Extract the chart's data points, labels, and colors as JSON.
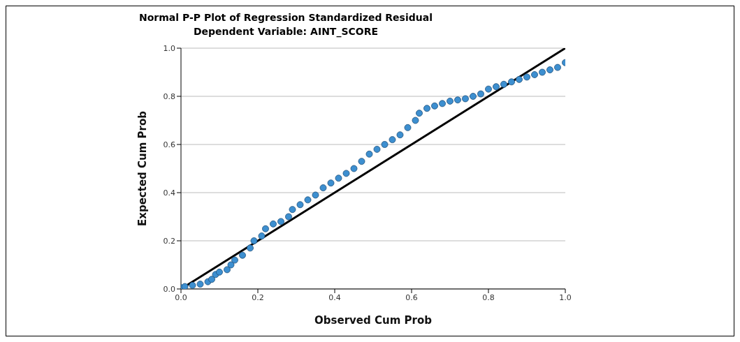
{
  "chart_data": {
    "type": "scatter",
    "title": "Normal P-P Plot of Regression Standardized Residual",
    "subtitle": "Dependent Variable: AINT_SCORE",
    "xlabel": "Observed Cum Prob",
    "ylabel": "Expected Cum Prob",
    "xlim": [
      0,
      1
    ],
    "ylim": [
      0,
      1
    ],
    "xticks": [
      {
        "value": 0,
        "label": "0.0"
      },
      {
        "value": 0.2,
        "label": "0.2"
      },
      {
        "value": 0.4,
        "label": "0.4"
      },
      {
        "value": 0.6,
        "label": "0.6"
      },
      {
        "value": 0.8,
        "label": "0.8"
      },
      {
        "value": 1,
        "label": "1.0"
      }
    ],
    "yticks": [
      {
        "value": 0,
        "label": "0.0"
      },
      {
        "value": 0.2,
        "label": "0.2"
      },
      {
        "value": 0.4,
        "label": "0.4"
      },
      {
        "value": 0.6,
        "label": "0.6"
      },
      {
        "value": 0.8,
        "label": "0.8"
      },
      {
        "value": 1,
        "label": "1.0"
      }
    ],
    "grid": "y",
    "series": [
      {
        "marker": "circle",
        "color": "#3d8fd0",
        "x": [
          0,
          0.01,
          0.03,
          0.05,
          0.07,
          0.08,
          0.09,
          0.1,
          0.12,
          0.13,
          0.14,
          0.16,
          0.18,
          0.19,
          0.21,
          0.22,
          0.24,
          0.26,
          0.28,
          0.29,
          0.31,
          0.33,
          0.35,
          0.37,
          0.39,
          0.41,
          0.43,
          0.45,
          0.47,
          0.49,
          0.51,
          0.53,
          0.55,
          0.57,
          0.59,
          0.61,
          0.62,
          0.64,
          0.66,
          0.68,
          0.7,
          0.72,
          0.74,
          0.76,
          0.78,
          0.8,
          0.82,
          0.84,
          0.86,
          0.88,
          0.9,
          0.92,
          0.94,
          0.96,
          0.98,
          1
        ],
        "values": [
          0.005,
          0.01,
          0.015,
          0.02,
          0.03,
          0.04,
          0.06,
          0.07,
          0.08,
          0.1,
          0.12,
          0.14,
          0.17,
          0.2,
          0.22,
          0.25,
          0.27,
          0.28,
          0.3,
          0.33,
          0.35,
          0.37,
          0.39,
          0.42,
          0.44,
          0.46,
          0.48,
          0.5,
          0.53,
          0.56,
          0.58,
          0.6,
          0.62,
          0.64,
          0.67,
          0.7,
          0.73,
          0.75,
          0.76,
          0.77,
          0.78,
          0.785,
          0.79,
          0.8,
          0.81,
          0.83,
          0.84,
          0.85,
          0.86,
          0.87,
          0.88,
          0.89,
          0.9,
          0.91,
          0.92,
          0.94
        ]
      },
      {
        "type": "line",
        "color": "#000000",
        "x": [
          0,
          1
        ],
        "values": [
          0,
          1
        ]
      }
    ]
  }
}
